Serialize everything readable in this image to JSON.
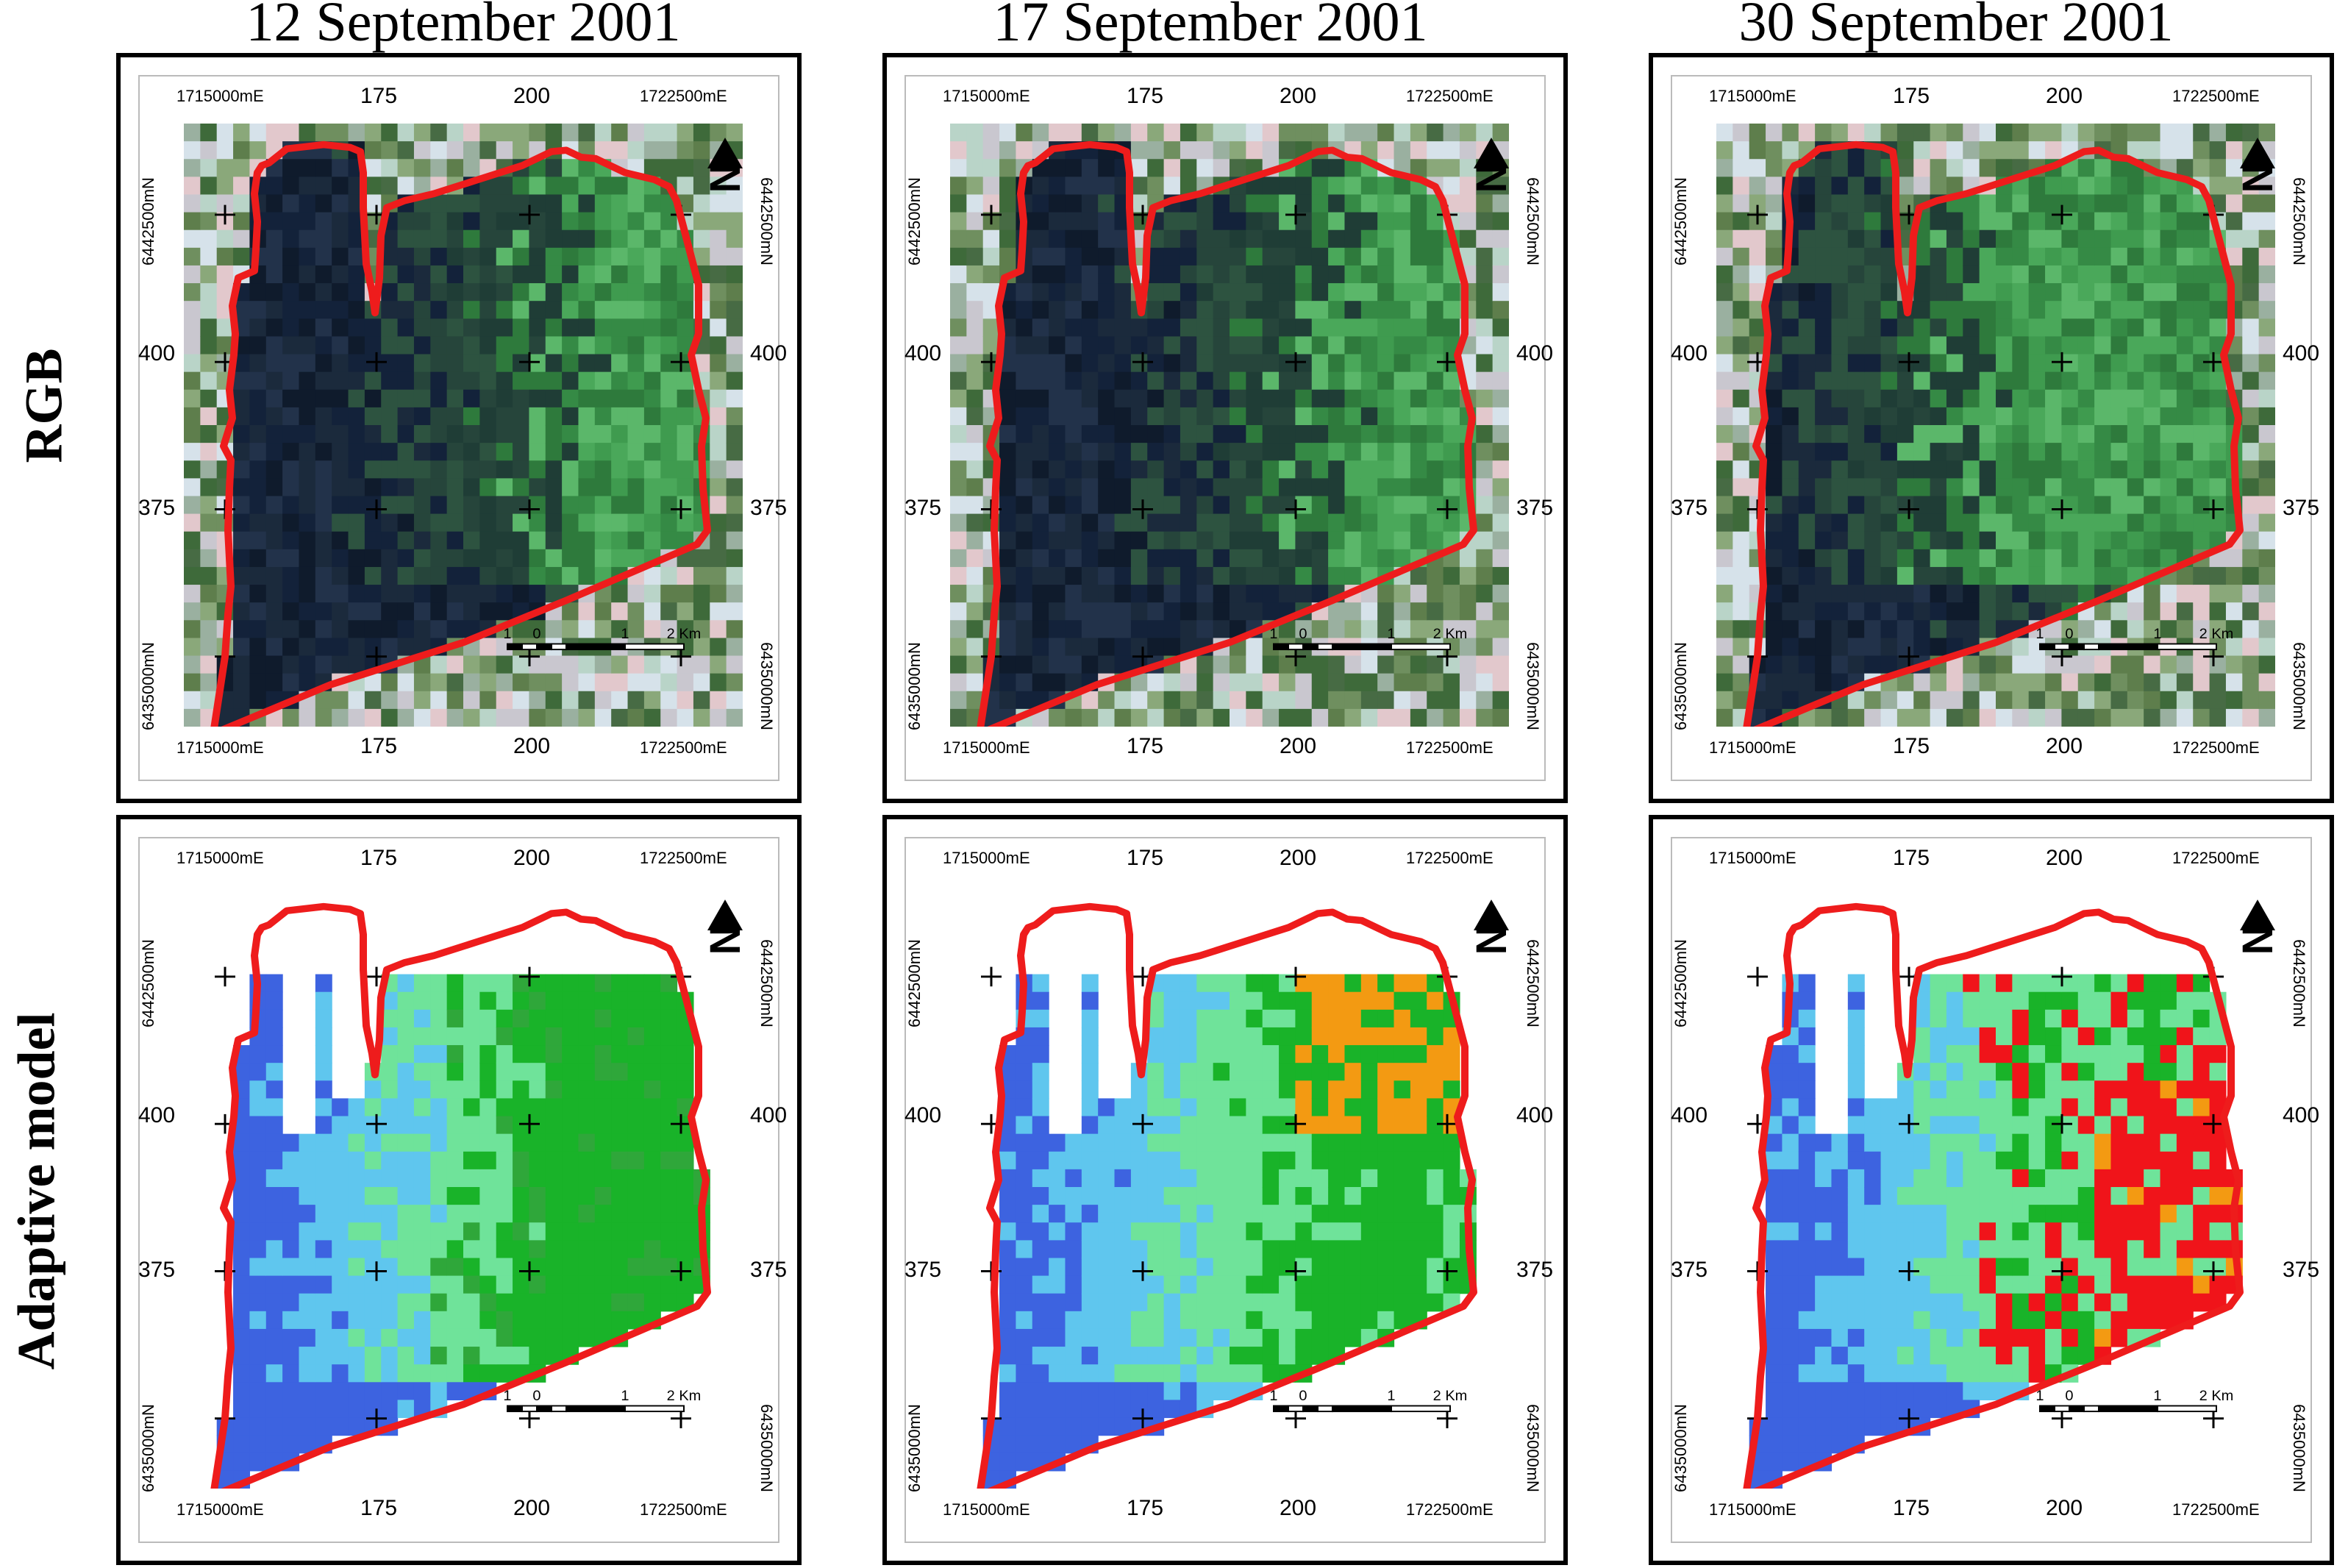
{
  "columns": [
    {
      "title": "12 September 2001"
    },
    {
      "title": "17 September 2001"
    },
    {
      "title": "30 September 2001"
    }
  ],
  "rows": [
    {
      "title": "RGB"
    },
    {
      "title": "Adaptive model"
    }
  ],
  "axes": {
    "x_left": "1715000mE",
    "x_mid1": "175",
    "x_mid2": "200",
    "x_right": "1722500mE",
    "y_top": "6442500mN",
    "y_mid1": "400",
    "y_mid2": "375",
    "y_bottom": "6435000mN"
  },
  "north_arrow": {
    "label": "N",
    "icon": "north-arrow-icon"
  },
  "scale_bar": {
    "ticks": [
      "1",
      "0",
      "1",
      "2 Km"
    ]
  },
  "colors": {
    "boundary": "#ee1c1c",
    "rgb_dark": "#1b2a3c",
    "rgb_green": "#3f9b4f",
    "model_blue": "#3d63e0",
    "model_cyan": "#5fc6ee",
    "model_lightgreen": "#6fe39a",
    "model_green": "#19b329",
    "model_orange": "#f39a12",
    "model_red": "#f0141a"
  }
}
